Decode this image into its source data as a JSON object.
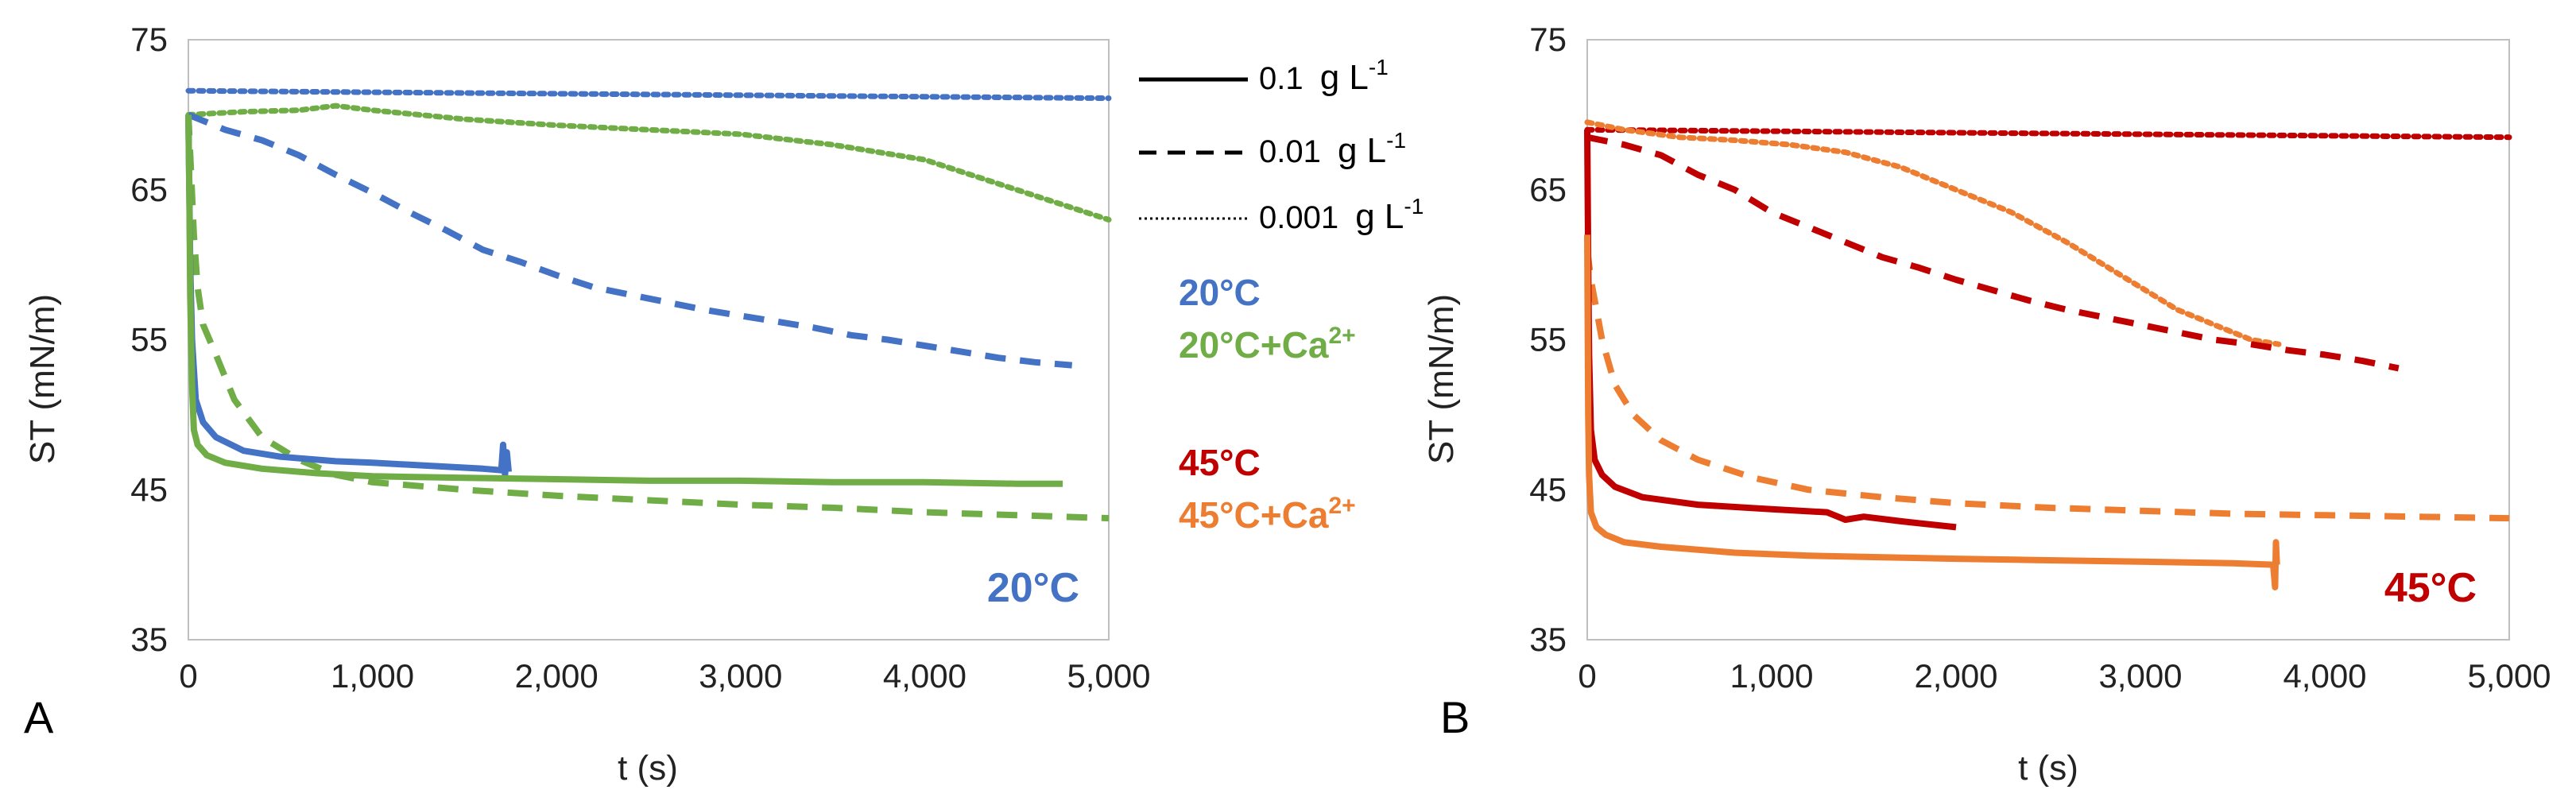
{
  "chart_data": [
    {
      "type": "line",
      "panel": "A",
      "xlabel": "t (s)",
      "ylabel": "ST (mN/m)",
      "xlim": [
        0,
        5000
      ],
      "ylim": [
        35,
        75
      ],
      "x_ticks": [
        "0",
        "1,000",
        "2,000",
        "3,000",
        "4,000",
        "5,000"
      ],
      "y_ticks": [
        "35",
        "45",
        "55",
        "65",
        "75"
      ],
      "corner_label": "20°C",
      "series": [
        {
          "name": "20°C, 0.001 g L-1",
          "condition": "20°C",
          "concentration": "0.001",
          "style": "dotted",
          "color": "#4472C4",
          "points": [
            [
              0,
              71.6
            ],
            [
              1000,
              71.5
            ],
            [
              2000,
              71.4
            ],
            [
              3000,
              71.3
            ],
            [
              4000,
              71.2
            ],
            [
              5000,
              71.1
            ]
          ]
        },
        {
          "name": "20°C+Ca2+, 0.001 g L-1",
          "condition": "20°C+Ca2+",
          "concentration": "0.001",
          "style": "dotted",
          "color": "#70AD47",
          "points": [
            [
              0,
              70.0
            ],
            [
              300,
              70.2
            ],
            [
              600,
              70.3
            ],
            [
              800,
              70.6
            ],
            [
              1000,
              70.3
            ],
            [
              1500,
              69.7
            ],
            [
              2000,
              69.3
            ],
            [
              2500,
              69.0
            ],
            [
              3000,
              68.7
            ],
            [
              3500,
              68.0
            ],
            [
              4000,
              67.0
            ],
            [
              4500,
              65.0
            ],
            [
              5000,
              63.0
            ]
          ]
        },
        {
          "name": "20°C, 0.01 g L-1",
          "condition": "20°C",
          "concentration": "0.01",
          "style": "dashed",
          "color": "#4472C4",
          "points": [
            [
              0,
              70.0
            ],
            [
              100,
              69.5
            ],
            [
              200,
              69.0
            ],
            [
              400,
              68.3
            ],
            [
              600,
              67.3
            ],
            [
              800,
              66.0
            ],
            [
              1000,
              64.8
            ],
            [
              1200,
              63.5
            ],
            [
              1400,
              62.3
            ],
            [
              1600,
              61.0
            ],
            [
              1800,
              60.2
            ],
            [
              2000,
              59.3
            ],
            [
              2200,
              58.5
            ],
            [
              2400,
              58.0
            ],
            [
              2600,
              57.5
            ],
            [
              2800,
              57.0
            ],
            [
              3000,
              56.6
            ],
            [
              3200,
              56.2
            ],
            [
              3400,
              55.8
            ],
            [
              3600,
              55.3
            ],
            [
              3800,
              55.0
            ],
            [
              4000,
              54.6
            ],
            [
              4200,
              54.2
            ],
            [
              4400,
              53.8
            ],
            [
              4600,
              53.5
            ],
            [
              4800,
              53.3
            ]
          ]
        },
        {
          "name": "20°C+Ca2+, 0.01 g L-1",
          "condition": "20°C+Ca2+",
          "concentration": "0.01",
          "style": "dashed",
          "color": "#70AD47",
          "points": [
            [
              0,
              70.0
            ],
            [
              15,
              66.0
            ],
            [
              30,
              62.0
            ],
            [
              50,
              58.5
            ],
            [
              80,
              56.0
            ],
            [
              150,
              54.0
            ],
            [
              250,
              51.0
            ],
            [
              400,
              48.5
            ],
            [
              600,
              47.0
            ],
            [
              800,
              46.0
            ],
            [
              1000,
              45.5
            ],
            [
              1500,
              45.0
            ],
            [
              2000,
              44.6
            ],
            [
              2500,
              44.3
            ],
            [
              3000,
              44.0
            ],
            [
              3500,
              43.8
            ],
            [
              4000,
              43.5
            ],
            [
              4500,
              43.3
            ],
            [
              5000,
              43.1
            ]
          ]
        },
        {
          "name": "20°C, 0.1 g L-1",
          "condition": "20°C",
          "concentration": "0.1",
          "style": "solid",
          "color": "#4472C4",
          "points": [
            [
              0,
              70.0
            ],
            [
              5,
              65.0
            ],
            [
              10,
              60.0
            ],
            [
              20,
              55.0
            ],
            [
              40,
              51.0
            ],
            [
              80,
              49.5
            ],
            [
              150,
              48.5
            ],
            [
              300,
              47.6
            ],
            [
              500,
              47.2
            ],
            [
              800,
              46.9
            ],
            [
              1000,
              46.8
            ],
            [
              1300,
              46.6
            ],
            [
              1600,
              46.4
            ],
            [
              1700,
              46.3
            ],
            [
              1710,
              48.0
            ],
            [
              1720,
              46.0
            ],
            [
              1730,
              47.5
            ],
            [
              1740,
              46.2
            ]
          ]
        },
        {
          "name": "20°C+Ca2+, 0.1 g L-1",
          "condition": "20°C+Ca2+",
          "concentration": "0.1",
          "style": "solid",
          "color": "#70AD47",
          "points": [
            [
              0,
              70.0
            ],
            [
              5,
              65.0
            ],
            [
              10,
              58.0
            ],
            [
              20,
              52.0
            ],
            [
              30,
              49.0
            ],
            [
              50,
              48.0
            ],
            [
              100,
              47.3
            ],
            [
              200,
              46.8
            ],
            [
              400,
              46.4
            ],
            [
              700,
              46.1
            ],
            [
              1000,
              45.9
            ],
            [
              1500,
              45.8
            ],
            [
              2000,
              45.7
            ],
            [
              2500,
              45.6
            ],
            [
              3000,
              45.6
            ],
            [
              3500,
              45.5
            ],
            [
              4000,
              45.5
            ],
            [
              4500,
              45.4
            ],
            [
              4750,
              45.4
            ]
          ]
        }
      ]
    },
    {
      "type": "line",
      "panel": "B",
      "xlabel": "t (s)",
      "ylabel": "ST (mN/m)",
      "xlim": [
        0,
        5000
      ],
      "ylim": [
        35,
        75
      ],
      "x_ticks": [
        "0",
        "1,000",
        "2,000",
        "3,000",
        "4,000",
        "5,000"
      ],
      "y_ticks": [
        "35",
        "45",
        "55",
        "65",
        "75"
      ],
      "corner_label": "45°C",
      "series": [
        {
          "name": "45°C, 0.001 g L-1",
          "condition": "45°C",
          "concentration": "0.001",
          "style": "dotted",
          "color": "#C00000",
          "points": [
            [
              0,
              69.0
            ],
            [
              1000,
              68.9
            ],
            [
              2000,
              68.8
            ],
            [
              3000,
              68.7
            ],
            [
              4000,
              68.6
            ],
            [
              5000,
              68.5
            ]
          ]
        },
        {
          "name": "45°C+Ca2+, 0.001 g L-1",
          "condition": "45°C+Ca2+",
          "concentration": "0.001",
          "style": "dotted",
          "color": "#ED7D31",
          "points": [
            [
              0,
              69.5
            ],
            [
              200,
              69.0
            ],
            [
              500,
              68.5
            ],
            [
              800,
              68.3
            ],
            [
              1100,
              68.0
            ],
            [
              1400,
              67.5
            ],
            [
              1700,
              66.5
            ],
            [
              2000,
              65.0
            ],
            [
              2300,
              63.5
            ],
            [
              2600,
              61.5
            ],
            [
              2800,
              60.0
            ],
            [
              3000,
              58.5
            ],
            [
              3200,
              57.0
            ],
            [
              3400,
              56.0
            ],
            [
              3600,
              55.0
            ],
            [
              3750,
              54.7
            ]
          ]
        },
        {
          "name": "45°C, 0.01 g L-1",
          "condition": "45°C",
          "concentration": "0.01",
          "style": "dashed",
          "color": "#C00000",
          "points": [
            [
              0,
              68.5
            ],
            [
              200,
              68.0
            ],
            [
              400,
              67.3
            ],
            [
              600,
              66.0
            ],
            [
              800,
              65.0
            ],
            [
              1000,
              63.5
            ],
            [
              1200,
              62.5
            ],
            [
              1400,
              61.5
            ],
            [
              1600,
              60.5
            ],
            [
              1800,
              59.8
            ],
            [
              2000,
              59.0
            ],
            [
              2200,
              58.3
            ],
            [
              2400,
              57.6
            ],
            [
              2600,
              57.0
            ],
            [
              2800,
              56.5
            ],
            [
              3000,
              56.0
            ],
            [
              3200,
              55.5
            ],
            [
              3400,
              55.0
            ],
            [
              3600,
              54.7
            ],
            [
              3800,
              54.3
            ],
            [
              4000,
              54.0
            ],
            [
              4200,
              53.6
            ],
            [
              4400,
              53.1
            ]
          ]
        },
        {
          "name": "45°C+Ca2+, 0.01 g L-1",
          "condition": "45°C+Ca2+",
          "concentration": "0.01",
          "style": "dashed",
          "color": "#ED7D31",
          "points": [
            [
              0,
              61.0
            ],
            [
              20,
              59.0
            ],
            [
              50,
              57.0
            ],
            [
              80,
              55.0
            ],
            [
              150,
              52.0
            ],
            [
              250,
              50.0
            ],
            [
              400,
              48.3
            ],
            [
              600,
              47.0
            ],
            [
              900,
              45.8
            ],
            [
              1200,
              45.0
            ],
            [
              1600,
              44.5
            ],
            [
              2000,
              44.1
            ],
            [
              2500,
              43.8
            ],
            [
              3000,
              43.6
            ],
            [
              3500,
              43.4
            ],
            [
              4000,
              43.3
            ],
            [
              4500,
              43.2
            ],
            [
              5000,
              43.1
            ]
          ]
        },
        {
          "name": "45°C, 0.1 g L-1",
          "condition": "45°C",
          "concentration": "0.1",
          "style": "solid",
          "color": "#C00000",
          "points": [
            [
              0,
              69.0
            ],
            [
              5,
              60.0
            ],
            [
              10,
              54.0
            ],
            [
              20,
              49.0
            ],
            [
              40,
              47.0
            ],
            [
              80,
              46.0
            ],
            [
              150,
              45.2
            ],
            [
              300,
              44.5
            ],
            [
              600,
              44.0
            ],
            [
              1000,
              43.7
            ],
            [
              1300,
              43.5
            ],
            [
              1400,
              43.0
            ],
            [
              1500,
              43.2
            ],
            [
              1700,
              42.9
            ],
            [
              2000,
              42.5
            ]
          ]
        },
        {
          "name": "45°C+Ca2+, 0.1 g L-1",
          "condition": "45°C+Ca2+",
          "concentration": "0.1",
          "style": "solid",
          "color": "#ED7D31",
          "points": [
            [
              0,
              62.0
            ],
            [
              5,
              50.0
            ],
            [
              10,
              46.0
            ],
            [
              20,
              43.5
            ],
            [
              50,
              42.5
            ],
            [
              100,
              42.0
            ],
            [
              200,
              41.5
            ],
            [
              400,
              41.2
            ],
            [
              800,
              40.8
            ],
            [
              1200,
              40.6
            ],
            [
              1600,
              40.5
            ],
            [
              2000,
              40.4
            ],
            [
              2500,
              40.3
            ],
            [
              3000,
              40.2
            ],
            [
              3500,
              40.1
            ],
            [
              3720,
              40.0
            ],
            [
              3730,
              38.5
            ],
            [
              3735,
              41.5
            ],
            [
              3740,
              40.0
            ]
          ]
        }
      ]
    }
  ],
  "legend": {
    "items": [
      {
        "value": "0.1",
        "unit_base": "g L",
        "unit_exp": "-1",
        "style": "solid"
      },
      {
        "value": "0.01",
        "unit_base": "g L",
        "unit_exp": "-1",
        "style": "dashed"
      },
      {
        "value": "0.001",
        "unit_base": "g L",
        "unit_exp": "-1",
        "style": "dotted"
      }
    ]
  },
  "conditions": [
    {
      "base": "20°C",
      "suffix": "",
      "sup": "",
      "color": "#4472C4"
    },
    {
      "base": "20°C+Ca",
      "suffix": "",
      "sup": "2+",
      "color": "#70AD47"
    },
    {
      "base": "45°C",
      "suffix": "",
      "sup": "",
      "color": "#C00000"
    },
    {
      "base": "45°C+Ca",
      "suffix": "",
      "sup": "2+",
      "color": "#ED7D31"
    }
  ],
  "panel_labels": [
    "A",
    "B"
  ]
}
